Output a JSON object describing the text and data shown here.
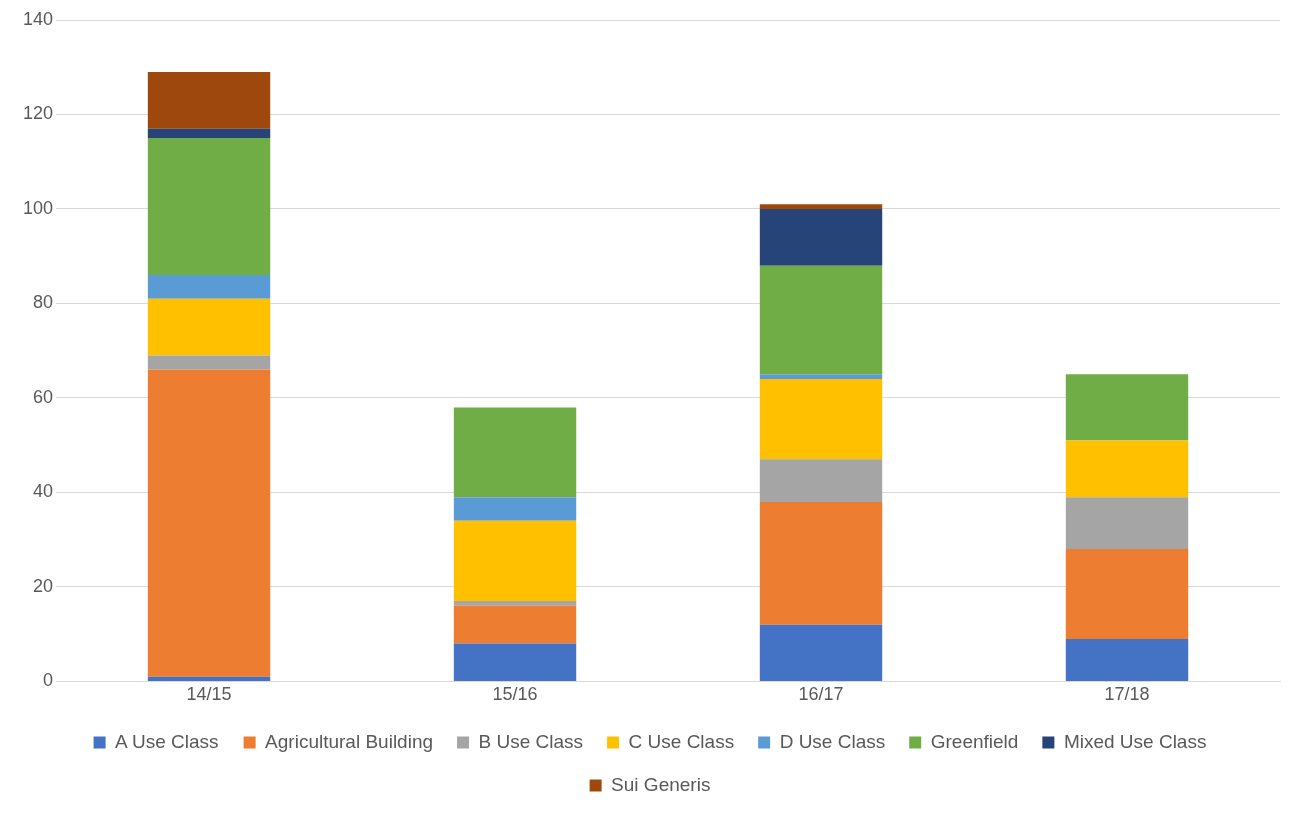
{
  "chart_data": {
    "type": "bar",
    "stacked": true,
    "categories": [
      "14/15",
      "15/16",
      "16/17",
      "17/18"
    ],
    "series": [
      {
        "name": "A Use Class",
        "color": "#4472c4",
        "values": [
          1,
          8,
          12,
          9
        ]
      },
      {
        "name": "Agricultural Building",
        "color": "#ed7d31",
        "values": [
          65,
          8,
          26,
          19
        ]
      },
      {
        "name": "B Use Class",
        "color": "#a5a5a5",
        "values": [
          3,
          1,
          9,
          11
        ]
      },
      {
        "name": "C Use Class",
        "color": "#ffc000",
        "values": [
          12,
          17,
          17,
          12
        ]
      },
      {
        "name": "D Use Class",
        "color": "#5b9bd5",
        "values": [
          5,
          5,
          1,
          0
        ]
      },
      {
        "name": "Greenfield",
        "color": "#70ad47",
        "values": [
          29,
          19,
          23,
          14
        ]
      },
      {
        "name": "Mixed Use Class",
        "color": "#264478",
        "values": [
          2,
          0,
          12,
          0
        ]
      },
      {
        "name": "Sui Generis",
        "color": "#9e480e",
        "values": [
          12,
          0,
          1,
          0
        ]
      }
    ],
    "ylim": [
      0,
      140
    ],
    "yticks": [
      0,
      20,
      40,
      60,
      80,
      100,
      120,
      140
    ],
    "grid": "y",
    "legend": "bottom"
  }
}
